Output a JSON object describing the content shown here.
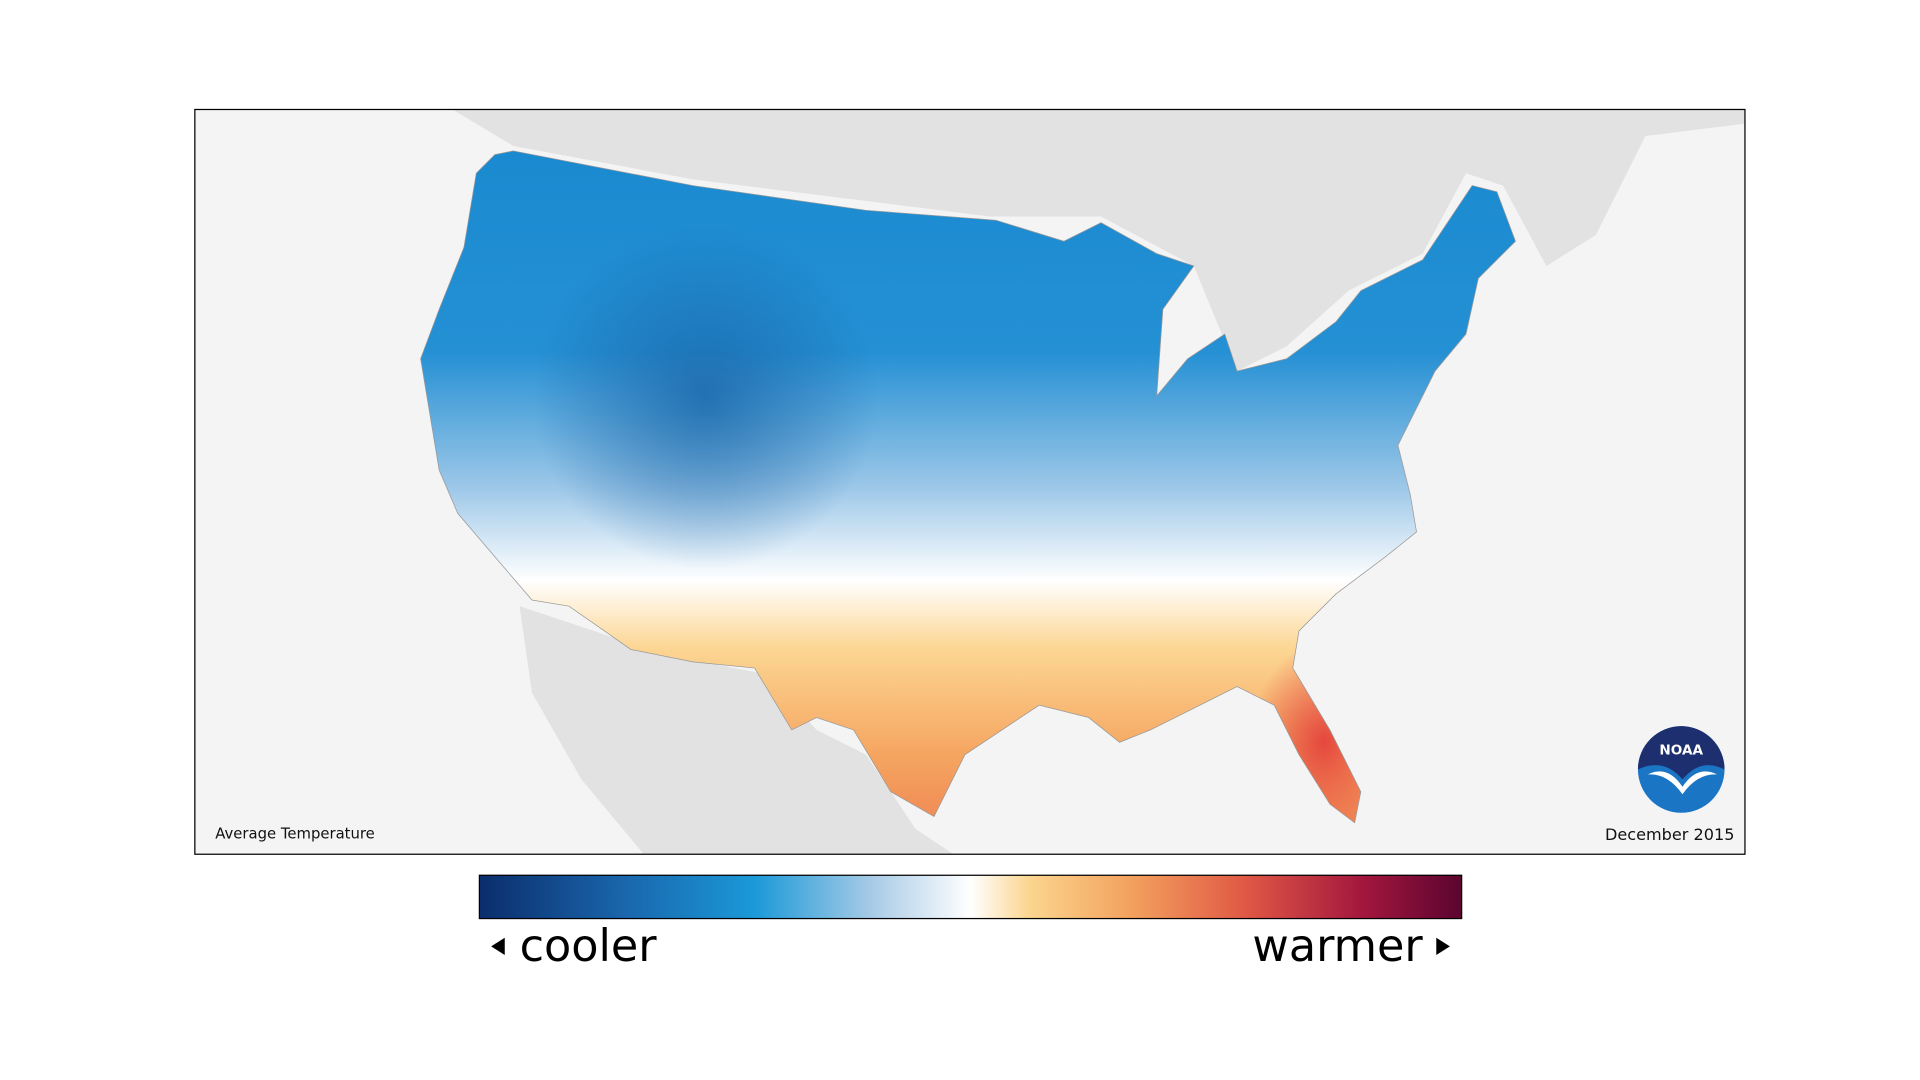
{
  "map": {
    "title": "Average Temperature",
    "date": "December 2015",
    "logo": "NOAA"
  },
  "legend": {
    "low": "cooler",
    "high": "warmer"
  }
}
